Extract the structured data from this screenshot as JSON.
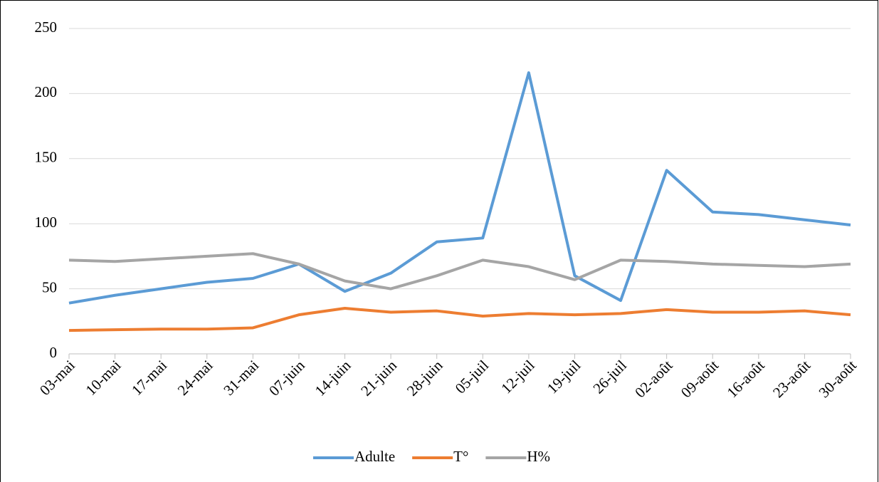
{
  "chart_data": {
    "type": "line",
    "categories": [
      "03-mai",
      "10-mai",
      "17-mai",
      "24-mai",
      "31-mai",
      "07-juin",
      "14-juin",
      "21-juin",
      "28-juin",
      "05-juil",
      "12-juil",
      "19-juil",
      "26-juil",
      "02-août",
      "09-août",
      "16-août",
      "23-août",
      "30-août"
    ],
    "series": [
      {
        "name": "Adulte",
        "color": "#5b9bd5",
        "values": [
          39,
          45,
          50,
          55,
          58,
          69,
          48,
          62,
          86,
          89,
          216,
          60,
          41,
          141,
          109,
          107,
          103,
          99
        ]
      },
      {
        "name": "T°",
        "color": "#ed7d31",
        "values": [
          18,
          18.5,
          19,
          19,
          20,
          30,
          35,
          32,
          33,
          29,
          31,
          30,
          31,
          34,
          32,
          32,
          33,
          30
        ]
      },
      {
        "name": "H%",
        "color": "#a5a5a5",
        "values": [
          72,
          71,
          73,
          75,
          77,
          69,
          56,
          50,
          60,
          72,
          67,
          57,
          72,
          71,
          69,
          68,
          67,
          69
        ]
      }
    ],
    "ylim": [
      0,
      250
    ],
    "yticks": [
      0,
      50,
      100,
      150,
      200,
      250
    ],
    "grid": true,
    "legend": "bottom"
  }
}
